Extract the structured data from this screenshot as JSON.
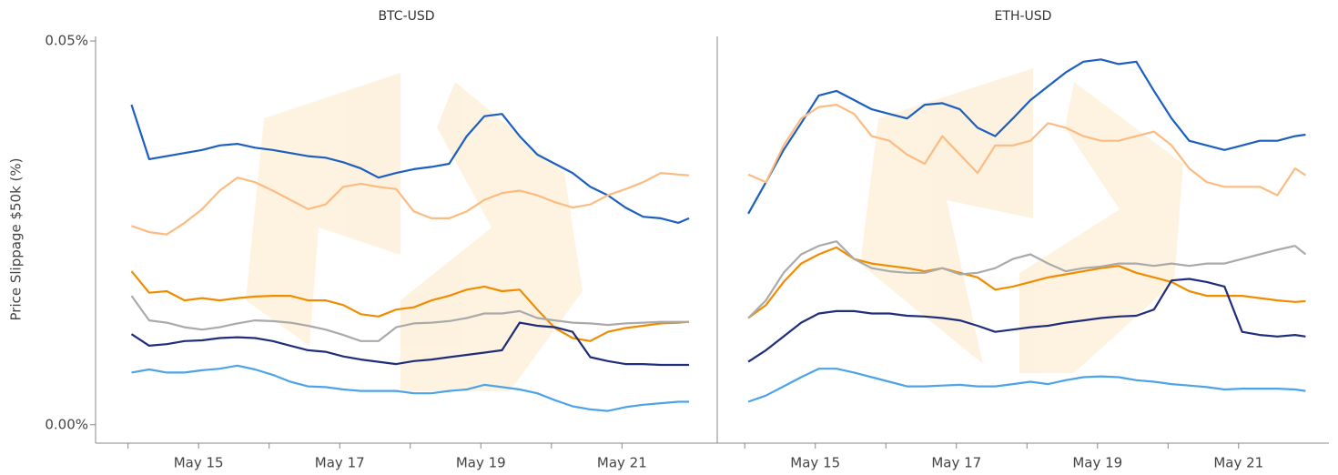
{
  "chart_data": [
    {
      "type": "line",
      "title": "BTC-USD",
      "ylabel": "Price Slippage $50k (%)",
      "x": [
        0.05,
        0.3,
        0.55,
        0.8,
        1.05,
        1.3,
        1.55,
        1.8,
        2.05,
        2.3,
        2.55,
        2.8,
        3.05,
        3.3,
        3.55,
        3.8,
        4.05,
        4.3,
        4.55,
        4.8,
        5.05,
        5.3,
        5.55,
        5.8,
        6.05,
        6.3,
        6.55,
        6.8,
        7.05,
        7.3,
        7.55,
        7.8,
        7.95
      ],
      "xlim": [
        -0.46,
        8.35
      ],
      "ylim": [
        -0.0024,
        0.0506
      ],
      "xticks": [
        {
          "value": 0,
          "label": null
        },
        {
          "value": 1,
          "label": "May 15"
        },
        {
          "value": 2,
          "label": null
        },
        {
          "value": 3,
          "label": "May 17"
        },
        {
          "value": 4,
          "label": null
        },
        {
          "value": 5,
          "label": "May 19"
        },
        {
          "value": 6,
          "label": null
        },
        {
          "value": 7,
          "label": "May 21"
        }
      ],
      "yticks": [
        {
          "value": 0,
          "label": "0.00%"
        },
        {
          "value": 0.05,
          "label": "0.05%"
        }
      ],
      "series": [
        {
          "color": "#1c5fbf",
          "values": [
            0.0417,
            0.0346,
            0.035,
            0.0354,
            0.0358,
            0.0364,
            0.0366,
            0.0361,
            0.0358,
            0.0354,
            0.035,
            0.0348,
            0.0342,
            0.0334,
            0.0322,
            0.0328,
            0.0333,
            0.0336,
            0.034,
            0.0376,
            0.0402,
            0.0405,
            0.0376,
            0.0352,
            0.034,
            0.0328,
            0.031,
            0.0299,
            0.0283,
            0.0271,
            0.0269,
            0.0263,
            0.0269
          ]
        },
        {
          "color": "#fdbb82",
          "values": [
            0.0259,
            0.0251,
            0.0248,
            0.0263,
            0.0281,
            0.0305,
            0.0322,
            0.0316,
            0.0305,
            0.0293,
            0.0281,
            0.0287,
            0.031,
            0.0314,
            0.031,
            0.0307,
            0.0278,
            0.0269,
            0.0269,
            0.0278,
            0.0293,
            0.0302,
            0.0305,
            0.0299,
            0.029,
            0.0283,
            0.0287,
            0.0299,
            0.0307,
            0.0316,
            0.0328,
            0.0326,
            0.0325
          ]
        },
        {
          "color": "#f08c00",
          "values": [
            0.02,
            0.0172,
            0.0174,
            0.0162,
            0.0165,
            0.0162,
            0.0165,
            0.0167,
            0.0168,
            0.0168,
            0.0162,
            0.0162,
            0.0156,
            0.0144,
            0.0141,
            0.015,
            0.0153,
            0.0162,
            0.0168,
            0.0176,
            0.018,
            0.0174,
            0.0176,
            0.015,
            0.0126,
            0.0113,
            0.0109,
            0.0121,
            0.0126,
            0.0129,
            0.0132,
            0.0133,
            0.0134
          ]
        },
        {
          "color": "#aaaaaa",
          "values": [
            0.0168,
            0.0136,
            0.0133,
            0.0127,
            0.0124,
            0.0127,
            0.0132,
            0.0136,
            0.0135,
            0.0133,
            0.0129,
            0.0124,
            0.0117,
            0.0109,
            0.0109,
            0.0127,
            0.0132,
            0.0133,
            0.0135,
            0.0139,
            0.0145,
            0.0145,
            0.0148,
            0.0139,
            0.0136,
            0.0133,
            0.0132,
            0.013,
            0.0132,
            0.0133,
            0.0134,
            0.0134,
            0.0134
          ]
        },
        {
          "color": "#1f2d7a",
          "values": [
            0.0118,
            0.0103,
            0.0105,
            0.0109,
            0.011,
            0.0113,
            0.0114,
            0.0113,
            0.0109,
            0.0103,
            0.0097,
            0.0095,
            0.0089,
            0.0085,
            0.0082,
            0.0079,
            0.0083,
            0.0085,
            0.0088,
            0.0091,
            0.0094,
            0.0097,
            0.0133,
            0.0129,
            0.0127,
            0.0121,
            0.0088,
            0.0083,
            0.0079,
            0.0079,
            0.0078,
            0.0078,
            0.0078
          ]
        },
        {
          "color": "#4da3e8",
          "values": [
            0.0068,
            0.0072,
            0.0068,
            0.0068,
            0.0071,
            0.0073,
            0.0077,
            0.0072,
            0.0065,
            0.0056,
            0.005,
            0.0049,
            0.0046,
            0.0044,
            0.0044,
            0.0044,
            0.0041,
            0.0041,
            0.0044,
            0.0046,
            0.0052,
            0.0049,
            0.0046,
            0.0041,
            0.0032,
            0.0024,
            0.002,
            0.0018,
            0.0023,
            0.0026,
            0.0028,
            0.003,
            0.003
          ]
        }
      ]
    },
    {
      "type": "line",
      "title": "ETH-USD",
      "x": [
        0.05,
        0.3,
        0.55,
        0.8,
        1.05,
        1.3,
        1.55,
        1.8,
        2.05,
        2.3,
        2.55,
        2.8,
        3.05,
        3.3,
        3.55,
        3.8,
        4.05,
        4.3,
        4.55,
        4.8,
        5.05,
        5.3,
        5.55,
        5.8,
        6.05,
        6.3,
        6.55,
        6.8,
        7.05,
        7.3,
        7.55,
        7.8,
        7.95
      ],
      "xlim": [
        -0.39,
        8.28
      ],
      "ylim": [
        -0.0024,
        0.0506
      ],
      "xticks": [
        {
          "value": 0,
          "label": null
        },
        {
          "value": 1,
          "label": "May 15"
        },
        {
          "value": 2,
          "label": null
        },
        {
          "value": 3,
          "label": "May 17"
        },
        {
          "value": 4,
          "label": null
        },
        {
          "value": 5,
          "label": "May 19"
        },
        {
          "value": 6,
          "label": null
        },
        {
          "value": 7,
          "label": "May 21"
        }
      ],
      "series": [
        {
          "color": "#1c5fbf",
          "values": [
            0.0275,
            0.0316,
            0.0358,
            0.0393,
            0.0429,
            0.0435,
            0.0423,
            0.0411,
            0.0405,
            0.0399,
            0.0417,
            0.0419,
            0.0411,
            0.0387,
            0.0376,
            0.0399,
            0.0423,
            0.0441,
            0.0459,
            0.0473,
            0.0476,
            0.047,
            0.0473,
            0.0435,
            0.0399,
            0.037,
            0.0364,
            0.0358,
            0.0364,
            0.037,
            0.037,
            0.0376,
            0.0378
          ]
        },
        {
          "color": "#fdbb82",
          "values": [
            0.0326,
            0.0316,
            0.0364,
            0.0399,
            0.0414,
            0.0417,
            0.0405,
            0.0376,
            0.037,
            0.0352,
            0.034,
            0.0376,
            0.0352,
            0.0328,
            0.0364,
            0.0364,
            0.037,
            0.0393,
            0.0387,
            0.0376,
            0.037,
            0.037,
            0.0376,
            0.0382,
            0.0364,
            0.0334,
            0.0316,
            0.031,
            0.031,
            0.031,
            0.0299,
            0.0334,
            0.0325
          ]
        },
        {
          "color": "#f08c00",
          "values": [
            0.0139,
            0.0156,
            0.0186,
            0.021,
            0.0222,
            0.0231,
            0.0216,
            0.021,
            0.0207,
            0.0204,
            0.02,
            0.0204,
            0.0198,
            0.0192,
            0.0176,
            0.018,
            0.0186,
            0.0192,
            0.0196,
            0.02,
            0.0204,
            0.0207,
            0.0198,
            0.0192,
            0.0186,
            0.0174,
            0.0168,
            0.0168,
            0.0168,
            0.0165,
            0.0162,
            0.016,
            0.0161
          ]
        },
        {
          "color": "#aaaaaa",
          "values": [
            0.0139,
            0.0162,
            0.0198,
            0.0222,
            0.0233,
            0.0239,
            0.0216,
            0.0204,
            0.02,
            0.0198,
            0.0198,
            0.0204,
            0.0196,
            0.0198,
            0.0204,
            0.0216,
            0.0222,
            0.021,
            0.02,
            0.0204,
            0.0206,
            0.021,
            0.021,
            0.0207,
            0.021,
            0.0207,
            0.021,
            0.021,
            0.0216,
            0.0222,
            0.0228,
            0.0233,
            0.0222
          ]
        },
        {
          "color": "#1f2d7a",
          "values": [
            0.0082,
            0.0097,
            0.0115,
            0.0133,
            0.0145,
            0.0148,
            0.0148,
            0.0145,
            0.0145,
            0.0142,
            0.0141,
            0.0139,
            0.0136,
            0.0129,
            0.0121,
            0.0124,
            0.0127,
            0.0129,
            0.0133,
            0.0136,
            0.0139,
            0.0141,
            0.0142,
            0.015,
            0.0188,
            0.019,
            0.0186,
            0.018,
            0.0121,
            0.0117,
            0.0115,
            0.0117,
            0.0115
          ]
        },
        {
          "color": "#4da3e8",
          "values": [
            0.003,
            0.0038,
            0.005,
            0.0062,
            0.0073,
            0.0073,
            0.0068,
            0.0062,
            0.0056,
            0.005,
            0.005,
            0.0051,
            0.0052,
            0.005,
            0.005,
            0.0053,
            0.0056,
            0.0053,
            0.0058,
            0.0062,
            0.0063,
            0.0062,
            0.0058,
            0.0056,
            0.0053,
            0.0051,
            0.0049,
            0.0046,
            0.0047,
            0.0047,
            0.0047,
            0.0046,
            0.0044
          ]
        }
      ]
    }
  ]
}
